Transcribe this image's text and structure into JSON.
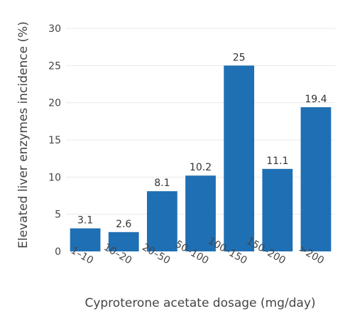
{
  "chart_data": {
    "type": "bar",
    "categories": [
      "1–10",
      "10–20",
      "20–50",
      "50–100",
      "100–150",
      "150–200",
      ">200"
    ],
    "values": [
      3.1,
      2.6,
      8.1,
      10.2,
      25,
      11.1,
      19.4
    ],
    "data_labels": [
      "3.1",
      "2.6",
      "8.1",
      "10.2",
      "25",
      "11.1",
      "19.4"
    ],
    "xlabel": "Cyproterone acetate dosage (mg/day)",
    "ylabel": "Elevated liver enzymes incidence (%)",
    "ylim": [
      0,
      30
    ],
    "yticks": [
      0,
      5,
      10,
      15,
      20,
      25,
      30
    ],
    "grid": true,
    "bar_color": "#1f6fb4"
  }
}
